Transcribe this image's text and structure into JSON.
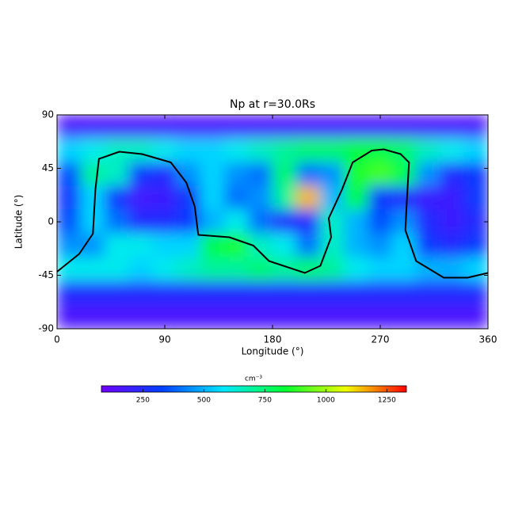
{
  "chart_data": {
    "type": "heatmap",
    "title": "Np at r=30.0Rs",
    "xlabel": "Longitude (°)",
    "ylabel": "Latitude (°)",
    "xlim": [
      0,
      360
    ],
    "xticks": [
      0,
      90,
      180,
      270,
      360
    ],
    "ylim": [
      -90,
      90
    ],
    "yticks": [
      -90,
      -45,
      0,
      45,
      90
    ],
    "x": [
      10,
      30,
      50,
      70,
      90,
      110,
      130,
      150,
      170,
      190,
      210,
      230,
      250,
      270,
      290,
      310,
      330,
      350
    ],
    "y": [
      80,
      60,
      40,
      20,
      0,
      -20,
      -40,
      -60,
      -80
    ],
    "z": [
      [
        160,
        160,
        160,
        160,
        160,
        160,
        160,
        160,
        160,
        160,
        160,
        160,
        160,
        160,
        160,
        160,
        160,
        160
      ],
      [
        550,
        600,
        650,
        650,
        600,
        550,
        550,
        600,
        650,
        700,
        750,
        750,
        800,
        800,
        750,
        650,
        600,
        550
      ],
      [
        350,
        700,
        650,
        300,
        250,
        450,
        550,
        450,
        400,
        750,
        400,
        450,
        850,
        900,
        800,
        450,
        250,
        300
      ],
      [
        300,
        550,
        300,
        180,
        200,
        300,
        550,
        400,
        450,
        700,
        1150,
        500,
        800,
        300,
        250,
        200,
        200,
        300
      ],
      [
        350,
        550,
        400,
        250,
        250,
        300,
        500,
        600,
        400,
        250,
        250,
        650,
        500,
        350,
        450,
        250,
        200,
        250
      ],
      [
        450,
        450,
        600,
        600,
        550,
        550,
        800,
        850,
        650,
        600,
        400,
        650,
        500,
        450,
        550,
        300,
        250,
        300
      ],
      [
        600,
        600,
        600,
        550,
        600,
        650,
        700,
        700,
        750,
        700,
        750,
        700,
        600,
        550,
        550,
        500,
        500,
        550
      ],
      [
        250,
        250,
        250,
        250,
        250,
        250,
        250,
        250,
        250,
        250,
        250,
        250,
        250,
        250,
        250,
        250,
        250,
        250
      ],
      [
        160,
        160,
        160,
        160,
        160,
        160,
        160,
        160,
        160,
        160,
        160,
        160,
        160,
        160,
        160,
        160,
        160,
        160
      ]
    ],
    "colormap": [
      "#7000ff",
      "#0040ff",
      "#00e8ff",
      "#00ff30",
      "#f0ff00",
      "#ff0000"
    ],
    "clim": [
      80,
      1330
    ],
    "colorbar_label": "cm⁻³",
    "colorbar_ticks": [
      250,
      500,
      750,
      1000,
      1250
    ],
    "line": {
      "color": "#000000",
      "x": [
        0,
        18.5,
        30,
        32,
        35,
        52,
        71,
        95,
        108,
        115,
        118,
        144,
        164,
        177,
        207,
        220,
        229,
        227,
        238,
        247,
        263,
        273,
        287,
        294,
        292,
        291,
        300,
        323,
        343,
        360
      ],
      "y": [
        -42,
        -27,
        -10,
        27,
        53,
        59,
        57,
        50,
        33,
        13,
        -11,
        -13,
        -20,
        -33,
        -43,
        -37,
        -13,
        3,
        27,
        50,
        60,
        61,
        57,
        50,
        13,
        -7,
        -33,
        -47,
        -47,
        -43
      ]
    }
  }
}
